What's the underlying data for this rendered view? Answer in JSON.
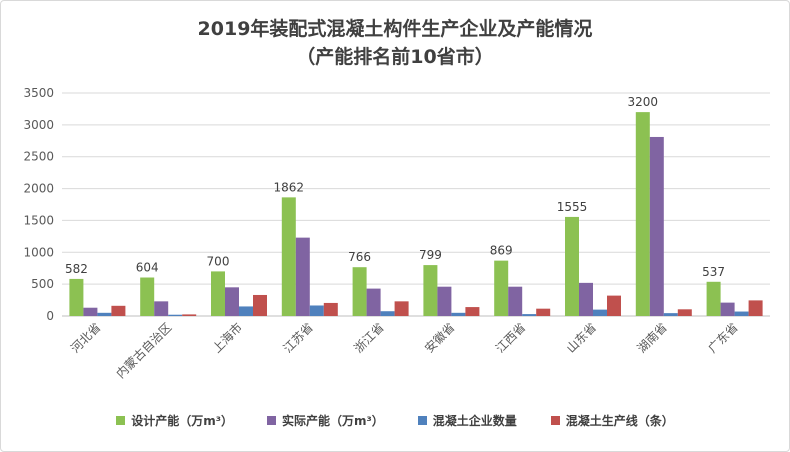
{
  "chart_data": {
    "type": "bar",
    "title_line1": "2019年装配式混凝土构件生产企业及产能情况",
    "title_line2": "（产能排名前10省市）",
    "categories": [
      "河北省",
      "内蒙古自治区",
      "上海市",
      "江苏省",
      "浙江省",
      "安徽省",
      "江西省",
      "山东省",
      "湖南省",
      "广东省"
    ],
    "series": [
      {
        "name": "设计产能（万m³）",
        "color": "#8cc152",
        "values": [
          582,
          604,
          700,
          1862,
          766,
          799,
          869,
          1555,
          3200,
          537
        ]
      },
      {
        "name": "实际产能（万m³）",
        "color": "#8064a2",
        "values": [
          130,
          230,
          450,
          1230,
          430,
          460,
          460,
          520,
          2810,
          210
        ]
      },
      {
        "name": "混凝土企业数量",
        "color": "#4f81bd",
        "values": [
          50,
          20,
          150,
          165,
          75,
          50,
          30,
          100,
          45,
          70
        ]
      },
      {
        "name": "混凝土生产线（条）",
        "color": "#c0504d",
        "values": [
          160,
          25,
          330,
          205,
          230,
          140,
          115,
          320,
          105,
          245
        ]
      }
    ],
    "data_labels": [
      "582",
      "604",
      "700",
      "1862",
      "766",
      "799",
      "869",
      "1555",
      "3200",
      "537"
    ],
    "y_ticks": [
      "0",
      "500",
      "1000",
      "1500",
      "2000",
      "2500",
      "3000",
      "3500"
    ],
    "ylim": [
      0,
      3500
    ],
    "grid": true,
    "legend_position": "bottom"
  }
}
